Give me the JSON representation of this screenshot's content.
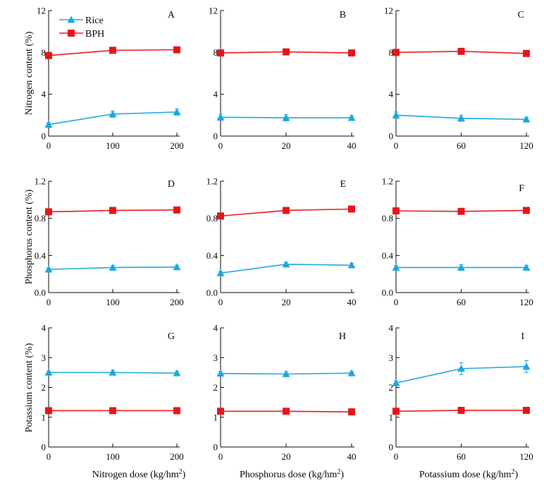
{
  "colors": {
    "rice": "#1ba7e0",
    "bph": "#e8141b",
    "axis": "#000000"
  },
  "legend": {
    "position": "top-left",
    "entries": [
      {
        "key": "rice",
        "label": "Rice",
        "marker": "triangle"
      },
      {
        "key": "bph",
        "label": "BPH",
        "marker": "square"
      }
    ]
  },
  "row_labels": [
    "Nitrogen content (%)",
    "Phosphorus content (%)",
    "Potassium content (%)"
  ],
  "col_labels": [
    {
      "text": "Nitrogen dose (kg/hm",
      "sup": "2",
      "close": ")"
    },
    {
      "text": "Phosphorus dose (kg/hm",
      "sup": "2",
      "close": ")"
    },
    {
      "text": "Potassium dose (kg/hm",
      "sup": "2",
      "close": ")"
    }
  ],
  "chart_data": [
    {
      "type": "line",
      "panel": "A",
      "x": [
        0,
        100,
        200
      ],
      "xticks": [
        "0",
        "100",
        "200"
      ],
      "ylim": [
        0,
        12
      ],
      "yticks": [
        "0",
        "4",
        "8",
        "12"
      ],
      "series": [
        {
          "name": "Rice",
          "values": [
            1.1,
            2.1,
            2.3
          ],
          "err": [
            0.2,
            0.3,
            0.3
          ]
        },
        {
          "name": "BPH",
          "values": [
            7.7,
            8.2,
            8.25
          ],
          "err": [
            0.1,
            0.1,
            0.1
          ]
        }
      ]
    },
    {
      "type": "line",
      "panel": "B",
      "x": [
        0,
        20,
        40
      ],
      "xticks": [
        "0",
        "20",
        "40"
      ],
      "ylim": [
        0,
        12
      ],
      "yticks": [
        "0",
        "4",
        "8",
        "12"
      ],
      "series": [
        {
          "name": "Rice",
          "values": [
            1.8,
            1.75,
            1.75
          ],
          "err": [
            0.3,
            0.3,
            0.2
          ]
        },
        {
          "name": "BPH",
          "values": [
            7.95,
            8.05,
            7.95
          ],
          "err": [
            0.1,
            0.2,
            0.1
          ]
        }
      ]
    },
    {
      "type": "line",
      "panel": "C",
      "x": [
        0,
        60,
        120
      ],
      "xticks": [
        "0",
        "60",
        "120"
      ],
      "ylim": [
        0,
        12
      ],
      "yticks": [
        "0",
        "4",
        "8",
        "12"
      ],
      "series": [
        {
          "name": "Rice",
          "values": [
            2.0,
            1.7,
            1.6
          ],
          "err": [
            0.3,
            0.3,
            0.2
          ]
        },
        {
          "name": "BPH",
          "values": [
            8.0,
            8.1,
            7.9
          ],
          "err": [
            0.1,
            0.2,
            0.1
          ]
        }
      ]
    },
    {
      "type": "line",
      "panel": "D",
      "x": [
        0,
        100,
        200
      ],
      "xticks": [
        "0",
        "100",
        "200"
      ],
      "ylim": [
        0,
        1.2
      ],
      "yticks": [
        "0.0",
        "0.4",
        "0.8",
        "1.2"
      ],
      "series": [
        {
          "name": "Rice",
          "values": [
            0.25,
            0.27,
            0.275
          ],
          "err": [
            0.015,
            0.02,
            0.02
          ]
        },
        {
          "name": "BPH",
          "values": [
            0.87,
            0.885,
            0.89
          ],
          "err": [
            0.01,
            0.01,
            0.01
          ]
        }
      ]
    },
    {
      "type": "line",
      "panel": "E",
      "x": [
        0,
        20,
        40
      ],
      "xticks": [
        "0",
        "20",
        "40"
      ],
      "ylim": [
        0,
        1.2
      ],
      "yticks": [
        "0.0",
        "0.4",
        "0.8",
        "1.2"
      ],
      "series": [
        {
          "name": "Rice",
          "values": [
            0.21,
            0.305,
            0.295
          ],
          "err": [
            0.02,
            0.02,
            0.02
          ]
        },
        {
          "name": "BPH",
          "values": [
            0.825,
            0.885,
            0.9
          ],
          "err": [
            0.01,
            0.01,
            0.02
          ]
        }
      ]
    },
    {
      "type": "line",
      "panel": "F",
      "x": [
        0,
        60,
        120
      ],
      "xticks": [
        "0",
        "60",
        "120"
      ],
      "ylim": [
        0,
        1.2
      ],
      "yticks": [
        "0.0",
        "0.4",
        "0.8",
        "1.2"
      ],
      "series": [
        {
          "name": "Rice",
          "values": [
            0.27,
            0.27,
            0.27
          ],
          "err": [
            0.02,
            0.03,
            0.02
          ]
        },
        {
          "name": "BPH",
          "values": [
            0.88,
            0.875,
            0.885
          ],
          "err": [
            0.01,
            0.01,
            0.01
          ]
        }
      ]
    },
    {
      "type": "line",
      "panel": "G",
      "x": [
        0,
        100,
        200
      ],
      "xticks": [
        "0",
        "100",
        "200"
      ],
      "ylim": [
        0,
        4
      ],
      "yticks": [
        "0",
        "1",
        "2",
        "3",
        "4"
      ],
      "series": [
        {
          "name": "Rice",
          "values": [
            2.5,
            2.5,
            2.48
          ],
          "err": [
            0.05,
            0.08,
            0.06
          ]
        },
        {
          "name": "BPH",
          "values": [
            1.22,
            1.22,
            1.22
          ],
          "err": [
            0.03,
            0.03,
            0.03
          ]
        }
      ]
    },
    {
      "type": "line",
      "panel": "H",
      "x": [
        0,
        20,
        40
      ],
      "xticks": [
        "0",
        "20",
        "40"
      ],
      "ylim": [
        0,
        4
      ],
      "yticks": [
        "0",
        "1",
        "2",
        "3",
        "4"
      ],
      "series": [
        {
          "name": "Rice",
          "values": [
            2.47,
            2.45,
            2.48
          ],
          "err": [
            0.07,
            0.08,
            0.06
          ]
        },
        {
          "name": "BPH",
          "values": [
            1.2,
            1.2,
            1.18
          ],
          "err": [
            0.03,
            0.03,
            0.03
          ]
        }
      ]
    },
    {
      "type": "line",
      "panel": "I",
      "x": [
        0,
        60,
        120
      ],
      "xticks": [
        "0",
        "60",
        "120"
      ],
      "ylim": [
        0,
        4
      ],
      "yticks": [
        "0",
        "1",
        "2",
        "3",
        "4"
      ],
      "series": [
        {
          "name": "Rice",
          "values": [
            2.15,
            2.63,
            2.7
          ],
          "err": [
            0.08,
            0.2,
            0.2
          ]
        },
        {
          "name": "BPH",
          "values": [
            1.2,
            1.23,
            1.23
          ],
          "err": [
            0.03,
            0.03,
            0.03
          ]
        }
      ]
    }
  ]
}
